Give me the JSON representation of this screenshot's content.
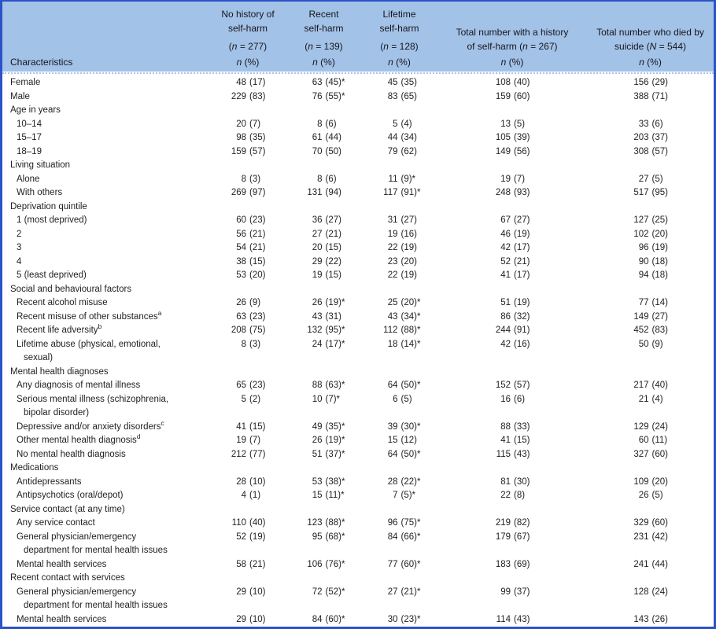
{
  "colors": {
    "border": "#2b52c7",
    "header_bg": "#a3c2e7",
    "text": "#1f1f1f"
  },
  "table": {
    "characteristics_label": "Characteristics",
    "n_pct": "n (%)",
    "columns": [
      {
        "lines": [
          "No history of",
          "self-harm"
        ],
        "count": "(n = 277)"
      },
      {
        "lines": [
          "Recent",
          "self-harm"
        ],
        "count": "(n = 139)"
      },
      {
        "lines": [
          "Lifetime",
          "self-harm"
        ],
        "count": "(n = 128)"
      },
      {
        "lines": [
          "Total number with a history",
          "of self-harm (n = 267)"
        ]
      },
      {
        "lines": [
          "Total number who died by",
          "suicide (N = 544)"
        ]
      }
    ],
    "rows": [
      {
        "type": "data",
        "indent": 0,
        "label": "Female",
        "values": [
          "48 (17)",
          "63 (45)*",
          "45 (35)",
          "108 (40)",
          "156 (29)"
        ]
      },
      {
        "type": "data",
        "indent": 0,
        "label": "Male",
        "values": [
          "229 (83)",
          "76 (55)*",
          "83 (65)",
          "159 (60)",
          "388 (71)"
        ]
      },
      {
        "type": "section",
        "label": "Age in years"
      },
      {
        "type": "data",
        "indent": 1,
        "label": "10–14",
        "values": [
          "20 (7)",
          "8 (6)",
          "5 (4)",
          "13 (5)",
          "33 (6)"
        ]
      },
      {
        "type": "data",
        "indent": 1,
        "label": "15–17",
        "values": [
          "98 (35)",
          "61 (44)",
          "44 (34)",
          "105 (39)",
          "203 (37)"
        ]
      },
      {
        "type": "data",
        "indent": 1,
        "label": "18–19",
        "values": [
          "159 (57)",
          "70 (50)",
          "79 (62)",
          "149 (56)",
          "308 (57)"
        ]
      },
      {
        "type": "section",
        "label": "Living situation"
      },
      {
        "type": "data",
        "indent": 1,
        "label": "Alone",
        "values": [
          "8 (3)",
          "8 (6)",
          "11 (9)*",
          "19 (7)",
          "27 (5)"
        ]
      },
      {
        "type": "data",
        "indent": 1,
        "label": "With others",
        "values": [
          "269 (97)",
          "131 (94)",
          "117 (91)*",
          "248 (93)",
          "517 (95)"
        ]
      },
      {
        "type": "section",
        "label": "Deprivation quintile"
      },
      {
        "type": "data",
        "indent": 1,
        "label": "1 (most deprived)",
        "values": [
          "60 (23)",
          "36 (27)",
          "31 (27)",
          "67 (27)",
          "127 (25)"
        ]
      },
      {
        "type": "data",
        "indent": 1,
        "label": "2",
        "values": [
          "56 (21)",
          "27 (21)",
          "19 (16)",
          "46 (19)",
          "102 (20)"
        ]
      },
      {
        "type": "data",
        "indent": 1,
        "label": "3",
        "values": [
          "54 (21)",
          "20 (15)",
          "22 (19)",
          "42 (17)",
          "96 (19)"
        ]
      },
      {
        "type": "data",
        "indent": 1,
        "label": "4",
        "values": [
          "38 (15)",
          "29 (22)",
          "23 (20)",
          "52 (21)",
          "90 (18)"
        ]
      },
      {
        "type": "data",
        "indent": 1,
        "label": "5 (least deprived)",
        "values": [
          "53 (20)",
          "19 (15)",
          "22 (19)",
          "41 (17)",
          "94 (18)"
        ]
      },
      {
        "type": "section",
        "label": "Social and behavioural factors"
      },
      {
        "type": "data",
        "indent": 1,
        "label": "Recent alcohol misuse",
        "values": [
          "26 (9)",
          "26 (19)*",
          "25 (20)*",
          "51 (19)",
          "77 (14)"
        ]
      },
      {
        "type": "data",
        "indent": 1,
        "label": "Recent misuse of other substances",
        "sup": "a",
        "values": [
          "63 (23)",
          "43 (31)",
          "43 (34)*",
          "86 (32)",
          "149 (27)"
        ]
      },
      {
        "type": "data",
        "indent": 1,
        "label": "Recent life adversity",
        "sup": "b",
        "values": [
          "208 (75)",
          "132 (95)*",
          "112 (88)*",
          "244 (91)",
          "452 (83)"
        ]
      },
      {
        "type": "data",
        "indent": 1,
        "label": "Lifetime abuse (physical, emotional,",
        "label2": "sexual)",
        "values": [
          "8 (3)",
          "24 (17)*",
          "18 (14)*",
          "42 (16)",
          "50 (9)"
        ]
      },
      {
        "type": "section",
        "label": "Mental health diagnoses"
      },
      {
        "type": "data",
        "indent": 1,
        "label": "Any diagnosis of mental illness",
        "values": [
          "65 (23)",
          "88 (63)*",
          "64 (50)*",
          "152 (57)",
          "217 (40)"
        ]
      },
      {
        "type": "data",
        "indent": 1,
        "label": "Serious mental illness (schizophrenia,",
        "label2": "bipolar disorder)",
        "values": [
          "5 (2)",
          "10 (7)*",
          "6 (5)",
          "16 (6)",
          "21 (4)"
        ]
      },
      {
        "type": "data",
        "indent": 1,
        "label": "Depressive and/or anxiety disorders",
        "sup": "c",
        "values": [
          "41 (15)",
          "49 (35)*",
          "39 (30)*",
          "88 (33)",
          "129 (24)"
        ]
      },
      {
        "type": "data",
        "indent": 1,
        "label": "Other mental health diagnosis",
        "sup": "d",
        "values": [
          "19 (7)",
          "26 (19)*",
          "15 (12)",
          "41 (15)",
          "60 (11)"
        ]
      },
      {
        "type": "data",
        "indent": 1,
        "label": "No mental health diagnosis",
        "values": [
          "212 (77)",
          "51 (37)*",
          "64 (50)*",
          "115 (43)",
          "327 (60)"
        ]
      },
      {
        "type": "section",
        "label": "Medications"
      },
      {
        "type": "data",
        "indent": 1,
        "label": "Antidepressants",
        "values": [
          "28 (10)",
          "53 (38)*",
          "28 (22)*",
          "81 (30)",
          "109 (20)"
        ]
      },
      {
        "type": "data",
        "indent": 1,
        "label": "Antipsychotics (oral/depot)",
        "values": [
          "4 (1)",
          "15 (11)*",
          "7 (5)*",
          "22 (8)",
          "26 (5)"
        ]
      },
      {
        "type": "section",
        "label": "Service contact (at any time)"
      },
      {
        "type": "data",
        "indent": 1,
        "label": "Any service contact",
        "values": [
          "110 (40)",
          "123 (88)*",
          "96 (75)*",
          "219 (82)",
          "329 (60)"
        ]
      },
      {
        "type": "data",
        "indent": 1,
        "label": "General physician/emergency",
        "label2": "department for mental health issues",
        "values": [
          "52 (19)",
          "95 (68)*",
          "84 (66)*",
          "179 (67)",
          "231 (42)"
        ]
      },
      {
        "type": "data",
        "indent": 1,
        "label": "Mental health services",
        "values": [
          "58 (21)",
          "106 (76)*",
          "77 (60)*",
          "183 (69)",
          "241 (44)"
        ]
      },
      {
        "type": "section",
        "label": "Recent contact with services"
      },
      {
        "type": "data",
        "indent": 1,
        "label": "General physician/emergency",
        "label2": "department for mental health issues",
        "values": [
          "29 (10)",
          "72 (52)*",
          "27 (21)*",
          "99 (37)",
          "128 (24)"
        ]
      },
      {
        "type": "data",
        "indent": 1,
        "label": "Mental health services",
        "values": [
          "29 (10)",
          "84 (60)*",
          "30 (23)*",
          "114 (43)",
          "143 (26)"
        ]
      }
    ]
  }
}
